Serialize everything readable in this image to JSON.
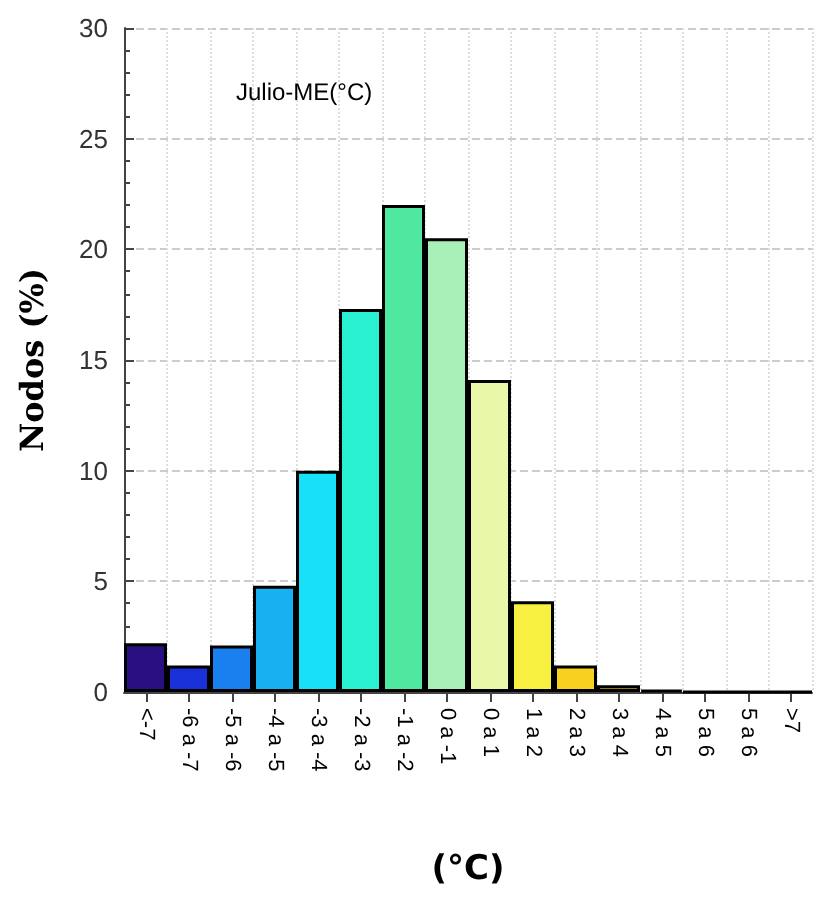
{
  "chart_data": {
    "type": "bar",
    "title": "Julio-ME(°C)",
    "xlabel": "(°C)",
    "ylabel": "Nodos (%)",
    "categories": [
      "<-7",
      "-6 a -7",
      "-5 a -6",
      "-4 a -5",
      "-3 a -4",
      "-2 a -3",
      "-1 a -2",
      "0 a -1",
      "0 a 1",
      "1 a 2",
      "2 a 3",
      "3 a 4",
      "4 a 5",
      "5 a 6",
      "5 a 6",
      ">7"
    ],
    "values": [
      2.2,
      1.2,
      2.1,
      4.8,
      10.0,
      17.3,
      22.0,
      20.5,
      14.1,
      4.1,
      1.2,
      0.3,
      0.1,
      0,
      0,
      0
    ],
    "colors": [
      "#2a0f80",
      "#1a30d8",
      "#1a80f0",
      "#18b0f0",
      "#18e0f8",
      "#28f0d0",
      "#50e8a0",
      "#a8f0b8",
      "#e8f8a8",
      "#f8f040",
      "#f8d020",
      "#c8a010",
      "#000000",
      "#000000",
      "#000000",
      "#000000"
    ],
    "ylim": [
      0,
      30
    ],
    "yticks": [
      0,
      5,
      10,
      15,
      20,
      25,
      30
    ],
    "grid": true
  }
}
